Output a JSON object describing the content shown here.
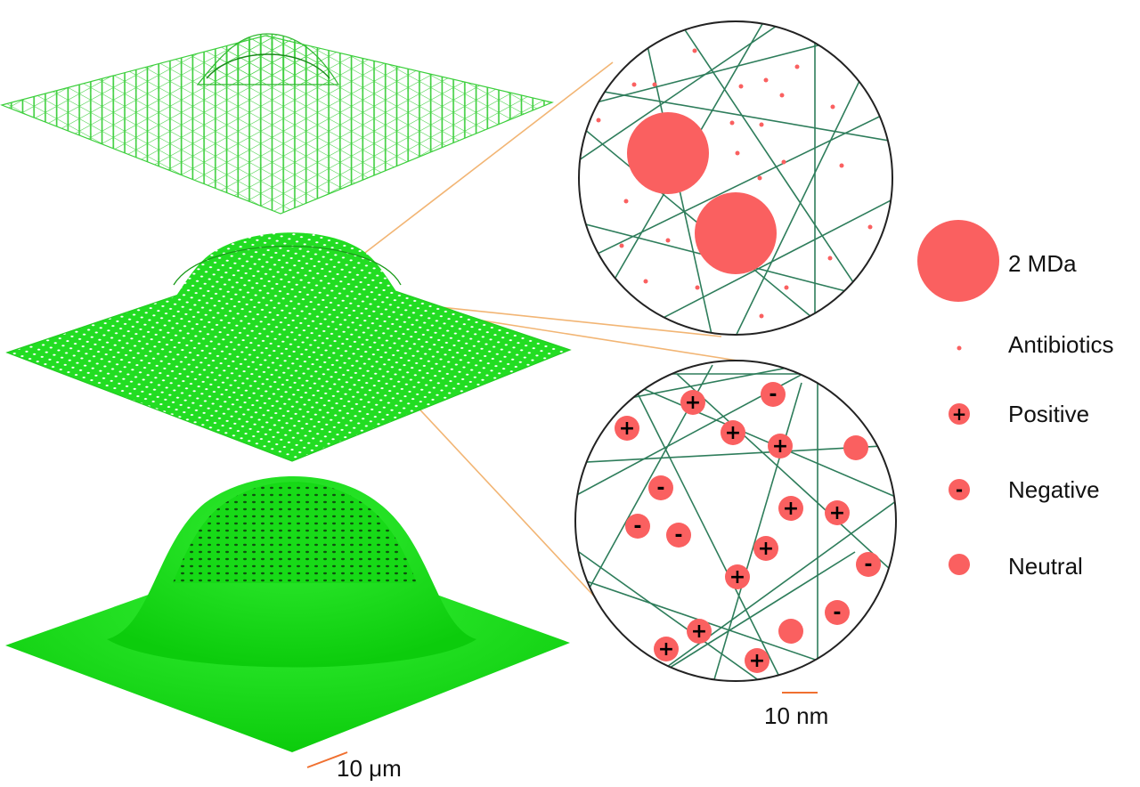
{
  "colors": {
    "mesh_light": "#3ccf3c",
    "mesh_fill": "#22dd22",
    "mesh_solid": "#10e010",
    "callout_lines": "#f2b574",
    "fibers": "#2e7d5b",
    "particles": "#fa6060",
    "scale_bar": "#f07030",
    "circle_border": "#222222"
  },
  "scale_bars": {
    "micro": "10 μm",
    "nano": "10 nm"
  },
  "legend": [
    {
      "kind": "2mda",
      "label": "2 MDa",
      "icon": "large-circle-icon"
    },
    {
      "kind": "antibiotic",
      "label": "Antibiotics",
      "icon": "small-dot-icon"
    },
    {
      "kind": "positive",
      "label": "Positive",
      "icon": "plus-particle-icon",
      "sign": "+"
    },
    {
      "kind": "negative",
      "label": "Negative",
      "icon": "minus-particle-icon",
      "sign": "-"
    },
    {
      "kind": "neutral",
      "label": "Neutral",
      "icon": "neutral-particle-icon"
    }
  ],
  "surfaces": [
    {
      "name": "mesh-wireframe-sparse",
      "style": "wireframe"
    },
    {
      "name": "mesh-wireframe-dense",
      "style": "dense"
    },
    {
      "name": "mesh-solid",
      "style": "solid"
    }
  ]
}
